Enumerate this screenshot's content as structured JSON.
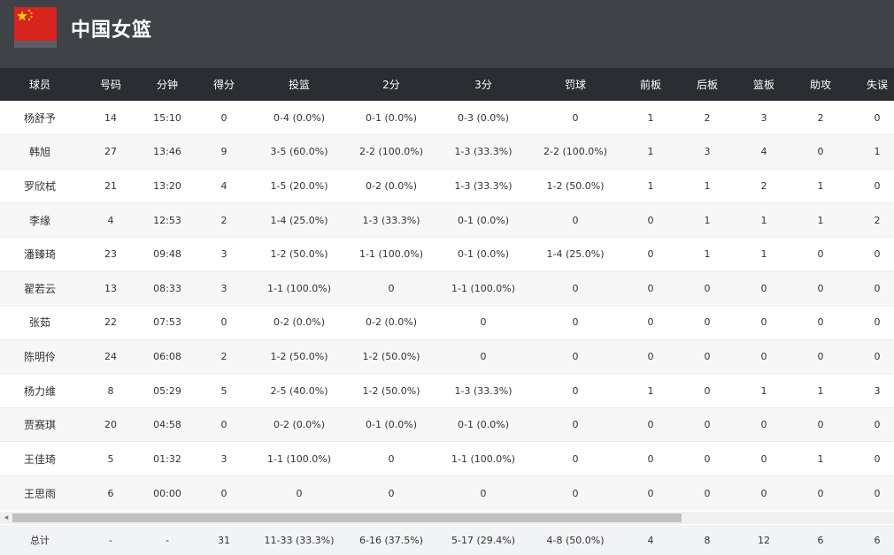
{
  "team": {
    "name": "中国女篮",
    "flag": "china-flag-icon"
  },
  "columns": [
    "球员",
    "号码",
    "分钟",
    "得分",
    "投篮",
    "2分",
    "3分",
    "罚球",
    "前板",
    "后板",
    "篮板",
    "助攻",
    "失误"
  ],
  "players": [
    [
      "杨舒予",
      "14",
      "15:10",
      "0",
      "0-4 (0.0%)",
      "0-1 (0.0%)",
      "0-3 (0.0%)",
      "0",
      "1",
      "2",
      "3",
      "2",
      "0"
    ],
    [
      "韩旭",
      "27",
      "13:46",
      "9",
      "3-5 (60.0%)",
      "2-2 (100.0%)",
      "1-3 (33.3%)",
      "2-2 (100.0%)",
      "1",
      "3",
      "4",
      "0",
      "1"
    ],
    [
      "罗欣栻",
      "21",
      "13:20",
      "4",
      "1-5 (20.0%)",
      "0-2 (0.0%)",
      "1-3 (33.3%)",
      "1-2 (50.0%)",
      "1",
      "1",
      "2",
      "1",
      "0"
    ],
    [
      "李缘",
      "4",
      "12:53",
      "2",
      "1-4 (25.0%)",
      "1-3 (33.3%)",
      "0-1 (0.0%)",
      "0",
      "0",
      "1",
      "1",
      "1",
      "2"
    ],
    [
      "潘臻琦",
      "23",
      "09:48",
      "3",
      "1-2 (50.0%)",
      "1-1 (100.0%)",
      "0-1 (0.0%)",
      "1-4 (25.0%)",
      "0",
      "1",
      "1",
      "0",
      "0"
    ],
    [
      "翟若云",
      "13",
      "08:33",
      "3",
      "1-1 (100.0%)",
      "0",
      "1-1 (100.0%)",
      "0",
      "0",
      "0",
      "0",
      "0",
      "0"
    ],
    [
      "张茹",
      "22",
      "07:53",
      "0",
      "0-2 (0.0%)",
      "0-2 (0.0%)",
      "0",
      "0",
      "0",
      "0",
      "0",
      "0",
      "0"
    ],
    [
      "陈明伶",
      "24",
      "06:08",
      "2",
      "1-2 (50.0%)",
      "1-2 (50.0%)",
      "0",
      "0",
      "0",
      "0",
      "0",
      "0",
      "0"
    ],
    [
      "杨力维",
      "8",
      "05:29",
      "5",
      "2-5 (40.0%)",
      "1-2 (50.0%)",
      "1-3 (33.3%)",
      "0",
      "1",
      "0",
      "1",
      "1",
      "3"
    ],
    [
      "贾赛琪",
      "20",
      "04:58",
      "0",
      "0-2 (0.0%)",
      "0-1 (0.0%)",
      "0-1 (0.0%)",
      "0",
      "0",
      "0",
      "0",
      "0",
      "0"
    ],
    [
      "王佳琦",
      "5",
      "01:32",
      "3",
      "1-1 (100.0%)",
      "0",
      "1-1 (100.0%)",
      "0",
      "0",
      "0",
      "0",
      "1",
      "0"
    ],
    [
      "王思雨",
      "6",
      "00:00",
      "0",
      "0",
      "0",
      "0",
      "0",
      "0",
      "0",
      "0",
      "0",
      "0"
    ]
  ],
  "totals": [
    "总计",
    "-",
    "-",
    "31",
    "11-33 (33.3%)",
    "6-16 (37.5%)",
    "5-17 (29.4%)",
    "4-8 (50.0%)",
    "4",
    "8",
    "12",
    "6",
    "6"
  ],
  "colors": {
    "header_bg": "#3f4246",
    "table_head_bg": "#2a2d31",
    "flag_red": "#d8241f",
    "flag_star": "#ffde00"
  }
}
